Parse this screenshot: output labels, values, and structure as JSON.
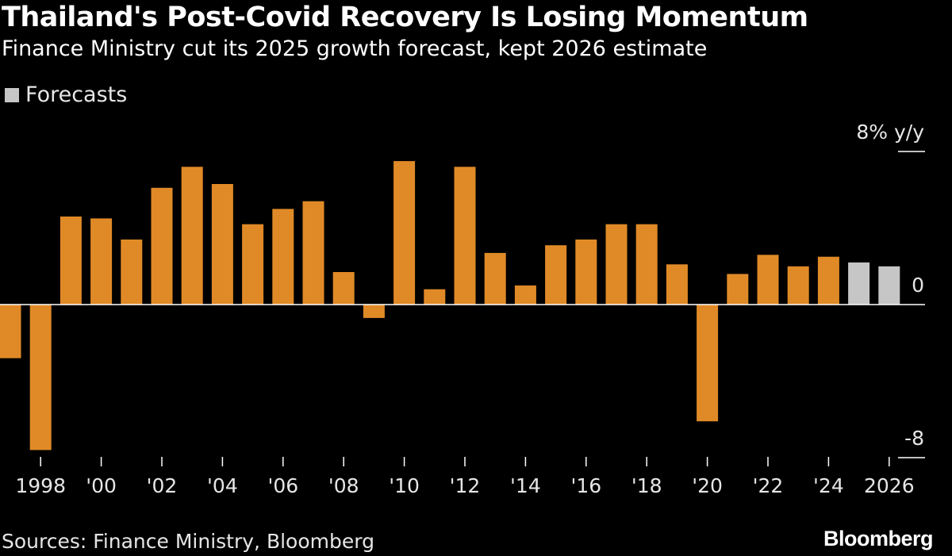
{
  "title": "Thailand's Post-Covid Recovery Is Losing Momentum",
  "subtitle": "Finance Ministry cut its 2025 growth forecast, kept 2026 estimate",
  "legend": {
    "forecasts_label": "Forecasts"
  },
  "source": "Sources: Finance Ministry, Bloomberg",
  "brand": "Bloomberg",
  "colors": {
    "actual": "#e08a27",
    "forecast": "#c6c6c6",
    "axis": "#ffffff",
    "background": "#000000"
  },
  "chart_data": {
    "type": "bar",
    "title": "Thailand's Post-Covid Recovery Is Losing Momentum",
    "subtitle": "Finance Ministry cut its 2025 growth forecast, kept 2026 estimate",
    "ylabel": "y/y",
    "ylim": [
      -8,
      8
    ],
    "yticks": [
      "8% y/y",
      "0",
      "-8"
    ],
    "ytick_values": [
      8,
      0,
      -8
    ],
    "x": [
      1997,
      1998,
      1999,
      2000,
      2001,
      2002,
      2003,
      2004,
      2005,
      2006,
      2007,
      2008,
      2009,
      2010,
      2011,
      2012,
      2013,
      2014,
      2015,
      2016,
      2017,
      2018,
      2019,
      2020,
      2021,
      2022,
      2023,
      2024,
      2025,
      2026
    ],
    "values": [
      -2.8,
      -7.6,
      4.6,
      4.5,
      3.4,
      6.1,
      7.2,
      6.3,
      4.2,
      5.0,
      5.4,
      1.7,
      -0.7,
      7.5,
      0.8,
      7.2,
      2.7,
      1.0,
      3.1,
      3.4,
      4.2,
      4.2,
      2.1,
      -6.1,
      1.6,
      2.6,
      2.0,
      2.5,
      2.2,
      2.0
    ],
    "forecast_years": [
      2025,
      2026
    ],
    "xtick_years": [
      1998,
      2000,
      2002,
      2004,
      2006,
      2008,
      2010,
      2012,
      2014,
      2016,
      2018,
      2020,
      2022,
      2024,
      2026
    ],
    "xtick_labels": [
      "1998",
      "'00",
      "'02",
      "'04",
      "'06",
      "'08",
      "'10",
      "'12",
      "'14",
      "'16",
      "'18",
      "'20",
      "'22",
      "'24",
      "2026"
    ],
    "legend": [
      {
        "name": "Forecasts",
        "color": "#c6c6c6"
      }
    ],
    "legend_position": "top-left",
    "grid": false
  }
}
